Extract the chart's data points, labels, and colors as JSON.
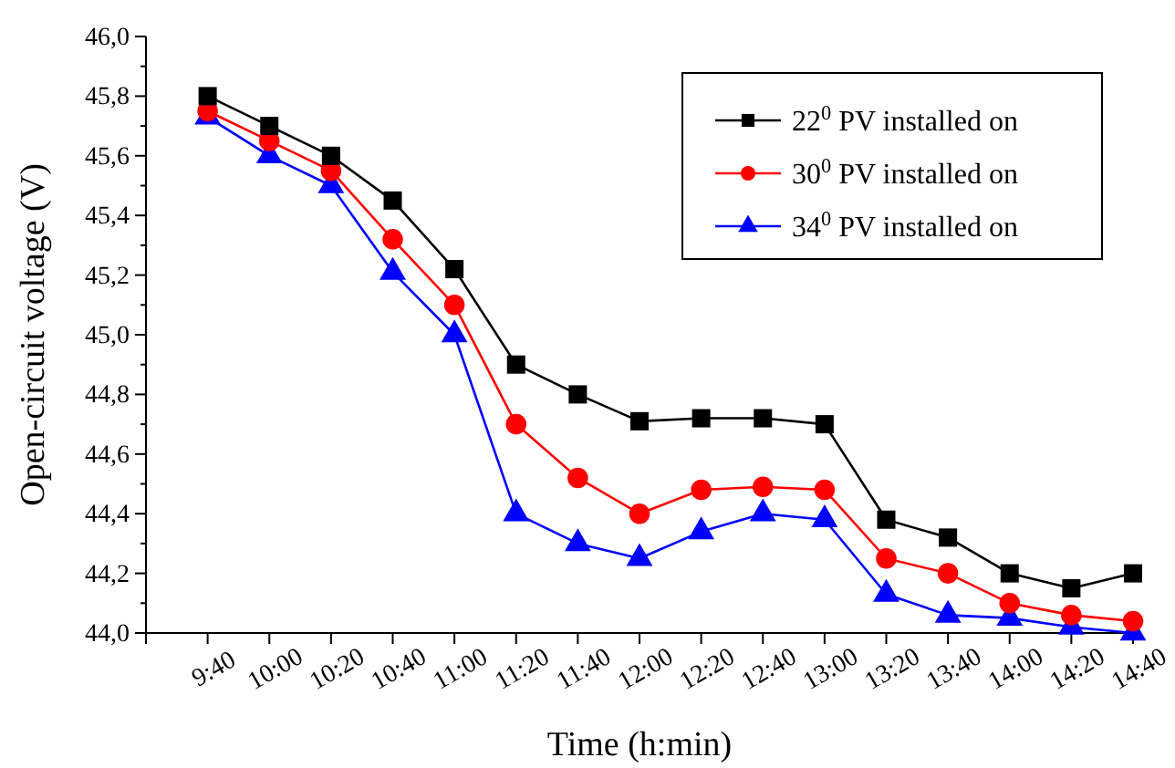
{
  "chart_data": {
    "type": "line",
    "xlabel": "Time (h:min)",
    "ylabel": "Open-circuit voltage (V)",
    "categories": [
      "9:40",
      "10:00",
      "10:20",
      "10:40",
      "11:00",
      "11:20",
      "11:40",
      "12:00",
      "12:20",
      "12:40",
      "13:00",
      "13:20",
      "13:40",
      "14:00",
      "14:20",
      "14:40"
    ],
    "series": [
      {
        "name": "22$^{0}$ PV installed on",
        "color": "#000000",
        "marker": "square",
        "values": [
          45.8,
          45.7,
          45.6,
          45.45,
          45.22,
          44.9,
          44.8,
          44.71,
          44.72,
          44.72,
          44.7,
          44.38,
          44.32,
          44.2,
          44.15,
          44.2
        ]
      },
      {
        "name": "30$^{0}$ PV installed on",
        "color": "#ff0000",
        "marker": "circle",
        "values": [
          45.75,
          45.65,
          45.55,
          45.32,
          45.1,
          44.7,
          44.52,
          44.4,
          44.48,
          44.49,
          44.48,
          44.25,
          44.2,
          44.1,
          44.06,
          44.04
        ]
      },
      {
        "name": "34$^{0}$ PV installed on",
        "color": "#0000ff",
        "marker": "triangle",
        "values": [
          45.73,
          45.6,
          45.5,
          45.21,
          45.0,
          44.4,
          44.3,
          44.25,
          44.34,
          44.4,
          44.38,
          44.13,
          44.06,
          44.05,
          44.02,
          44.0
        ]
      }
    ],
    "ylim": [
      44.0,
      46.0
    ],
    "yticks": [
      {
        "value": 44.0,
        "label": "44,0"
      },
      {
        "value": 44.2,
        "label": "44,2"
      },
      {
        "value": 44.4,
        "label": "44,4"
      },
      {
        "value": 44.6,
        "label": "44,6"
      },
      {
        "value": 44.8,
        "label": "44,8"
      },
      {
        "value": 45.0,
        "label": "45,0"
      },
      {
        "value": 45.2,
        "label": "45,2"
      },
      {
        "value": 45.4,
        "label": "45,4"
      },
      {
        "value": 45.6,
        "label": "45,6"
      },
      {
        "value": 45.8,
        "label": "45,8"
      },
      {
        "value": 46.0,
        "label": "46,0"
      }
    ],
    "legend": "top right",
    "grid": false
  }
}
